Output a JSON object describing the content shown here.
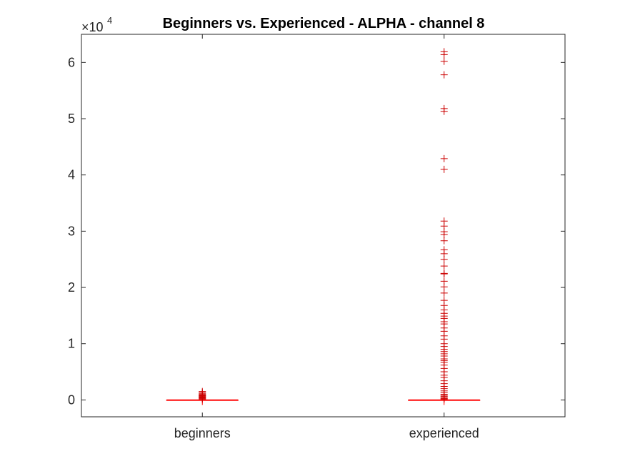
{
  "chart_data": {
    "type": "boxplot",
    "title": "Beginners vs. Experienced - ALPHA - channel 8",
    "xlabel": "",
    "ylabel": "",
    "categories": [
      "beginners",
      "experienced"
    ],
    "ylim": [
      -3000,
      65000
    ],
    "yticks": [
      0,
      10000,
      20000,
      30000,
      40000,
      50000,
      60000
    ],
    "ytick_labels": [
      "0",
      "1",
      "2",
      "3",
      "4",
      "5",
      "6"
    ],
    "y_exponent_base": "×10",
    "y_exponent_power": "4",
    "grid": false,
    "legend": "none",
    "box_color": "#ff0000",
    "outlier_color": "#cc0000",
    "boxes": [
      {
        "category": "beginners",
        "min": 0,
        "q1": 0,
        "median": 0,
        "q3": 0,
        "max": 0,
        "outliers": [
          150,
          250,
          350,
          450,
          550,
          650,
          750,
          850,
          950,
          1100,
          1300,
          1500
        ]
      },
      {
        "category": "experienced",
        "min": 0,
        "q1": 0,
        "median": 0,
        "q3": 0,
        "max": 0,
        "outliers": [
          61900,
          61400,
          60200,
          57800,
          51800,
          51300,
          42900,
          41000,
          31800,
          30900,
          29900,
          29400,
          28300,
          26700,
          26000,
          25000,
          23800,
          22500,
          22400,
          21100,
          20100,
          19000,
          17700,
          16800,
          16000,
          15400,
          14900,
          14500,
          13900,
          13500,
          12800,
          12200,
          11400,
          10800,
          10000,
          9500,
          9000,
          8600,
          8200,
          7800,
          7300,
          7000,
          6700,
          6200,
          5600,
          5000,
          4400,
          4000,
          3400,
          2900,
          2400,
          2000,
          1600,
          1300,
          1000,
          800,
          600,
          400,
          250,
          150
        ]
      }
    ]
  }
}
